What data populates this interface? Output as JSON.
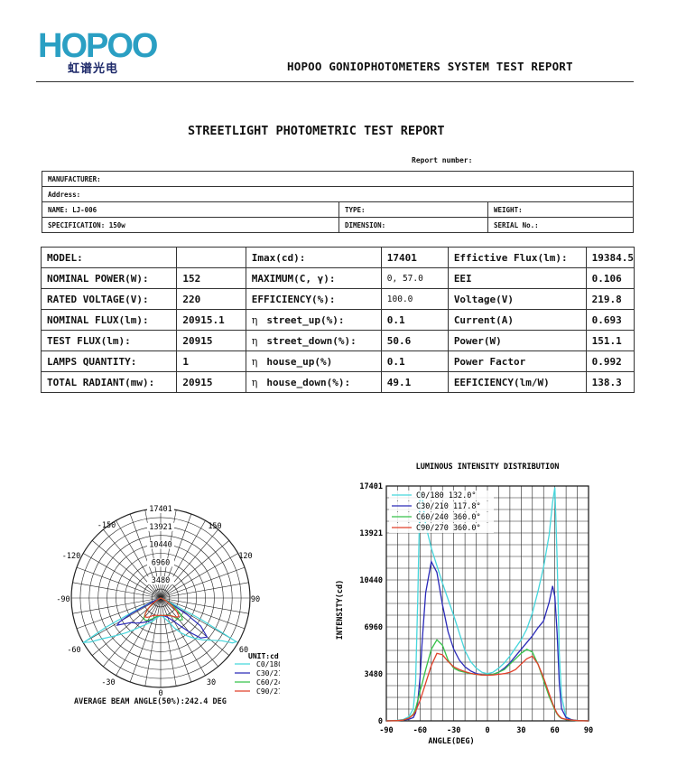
{
  "header": {
    "logo_text": "HOPOO",
    "logo_cn": "虹谱光电",
    "system_title": "HOPOO GONIOPHOTOMETERS SYSTEM TEST REPORT"
  },
  "document": {
    "title": "STREETLIGHT PHOTOMETRIC TEST REPORT",
    "report_number_label": "Report number:"
  },
  "info_table": {
    "manufacturer": "MANUFACTURER:",
    "address": "Address:",
    "name": "NAME: LJ-006",
    "type": "TYPE:",
    "weight": "WEIGHT:",
    "specification": "SPECIFICATION: 150w",
    "dimension": "DIMENSION:",
    "serial": "SERIAL No.:"
  },
  "param_table": {
    "rows": [
      {
        "l1": "MODEL:",
        "v1": "",
        "l2": "Imax(cd):",
        "v2": "17401",
        "l3": "Effictive Flux(lm):",
        "v3": "19384.5"
      },
      {
        "l1": "NOMINAL POWER(W):",
        "v1": "152",
        "l2": "MAXIMUM(C, γ):",
        "v2": "0, 57.0",
        "l3": "EEI",
        "v3": "0.106"
      },
      {
        "l1": "RATED VOLTAGE(V):",
        "v1": "220",
        "l2": "EFFICIENCY(%):",
        "v2": "100.0",
        "l3": "Voltage(V)",
        "v3": "219.8"
      },
      {
        "l1": "NOMINAL FLUX(lm):",
        "v1": "20915.1",
        "eta2": "η",
        "l2": "street_up(%):",
        "v2": "0.1",
        "l3": "Current(A)",
        "v3": "0.693"
      },
      {
        "l1": "TEST FLUX(lm):",
        "v1": "20915",
        "eta2": "η",
        "l2": "street_down(%):",
        "v2": "50.6",
        "l3": "Power(W)",
        "v3": "151.1"
      },
      {
        "l1": "LAMPS QUANTITY:",
        "v1": "1",
        "eta2": "η",
        "l2": "house_up(%)",
        "v2": "0.1",
        "l3": "Power Factor",
        "v3": "0.992"
      },
      {
        "l1": "TOTAL RADIANT(mw):",
        "v1": "20915",
        "eta2": "η",
        "l2": "house_down(%):",
        "v2": "49.1",
        "l3": "EEFICIENCY(lm/W)",
        "v3": "138.3"
      }
    ]
  },
  "polar_chart": {
    "ring_labels": [
      "17401",
      "13921",
      "10440",
      "6960",
      "3480"
    ],
    "angle_labels": {
      "a180": "0",
      "a150": "150",
      "a120": "120",
      "a90": "90",
      "a60": "60",
      "a30": "30",
      "m150": "-150",
      "m120": "-120",
      "m90": "-90",
      "m60": "-60",
      "m30": "-30"
    },
    "unit": "UNIT:cd",
    "beam_angle": "AVERAGE BEAM ANGLE(50%):242.4 DEG"
  },
  "chart_data": {
    "type": "line",
    "title": "LUMINOUS INTENSITY DISTRIBUTION",
    "xlabel": "ANGLE(DEG)",
    "ylabel": "INTENSITY(cd)",
    "xlim": [
      -90,
      90
    ],
    "ylim": [
      0,
      17401
    ],
    "x_ticks": [
      -90,
      -60,
      -30,
      0,
      30,
      60,
      90
    ],
    "y_ticks": [
      0,
      3480,
      6960,
      10440,
      13921,
      17401
    ],
    "x_tick_labels": [
      "-90",
      "-60",
      "-30",
      "0",
      "30",
      "60",
      "90"
    ],
    "y_tick_labels": [
      "0",
      "3480",
      "6960",
      "10440",
      "13921",
      "17401"
    ],
    "grid": true,
    "legend_position": "top-left",
    "x": [
      -90,
      -80,
      -75,
      -70,
      -66,
      -64,
      -62,
      -60,
      -58,
      -55,
      -50,
      -45,
      -40,
      -35,
      -30,
      -25,
      -20,
      -15,
      -10,
      -5,
      0,
      5,
      10,
      15,
      20,
      25,
      30,
      35,
      40,
      45,
      50,
      55,
      58,
      60,
      62,
      64,
      66,
      70,
      75,
      80,
      90
    ],
    "series": [
      {
        "name": "C0/180 132.0°",
        "color": "#46d6dc",
        "values": [
          0,
          40,
          100,
          300,
          900,
          2800,
          9000,
          17000,
          16500,
          14500,
          12800,
          11500,
          10200,
          9000,
          7800,
          6500,
          5200,
          4400,
          3900,
          3600,
          3500,
          3600,
          3900,
          4300,
          4800,
          5400,
          6000,
          6800,
          8000,
          9600,
          11400,
          13800,
          16200,
          17300,
          12000,
          5000,
          1800,
          300,
          80,
          20,
          0
        ]
      },
      {
        "name": "C30/210 117.8°",
        "color": "#2a2ab8",
        "values": [
          0,
          30,
          60,
          120,
          250,
          600,
          1400,
          3200,
          6000,
          9500,
          11800,
          11000,
          8600,
          6600,
          5300,
          4500,
          4000,
          3700,
          3500,
          3420,
          3400,
          3450,
          3600,
          3900,
          4300,
          4800,
          5300,
          5800,
          6300,
          6900,
          7400,
          8800,
          10000,
          9200,
          6500,
          2800,
          900,
          250,
          80,
          30,
          0
        ]
      },
      {
        "name": "C60/240 360.0°",
        "color": "#36c24a",
        "values": [
          0,
          20,
          60,
          200,
          500,
          900,
          1500,
          2200,
          2800,
          3800,
          5300,
          6000,
          5600,
          4500,
          3900,
          3700,
          3600,
          3500,
          3450,
          3400,
          3400,
          3450,
          3600,
          3800,
          4200,
          4600,
          5000,
          5300,
          5100,
          4200,
          3000,
          1800,
          1200,
          800,
          500,
          300,
          180,
          100,
          50,
          20,
          0
        ]
      },
      {
        "name": "C90/270 360.0°",
        "color": "#e0402a",
        "values": [
          0,
          20,
          60,
          200,
          450,
          700,
          1100,
          1500,
          2000,
          2800,
          4100,
          5000,
          4900,
          4400,
          4000,
          3800,
          3650,
          3520,
          3450,
          3400,
          3380,
          3400,
          3450,
          3500,
          3600,
          3800,
          4200,
          4600,
          4800,
          4200,
          3200,
          2000,
          1300,
          900,
          550,
          350,
          200,
          110,
          60,
          20,
          0
        ]
      }
    ]
  }
}
